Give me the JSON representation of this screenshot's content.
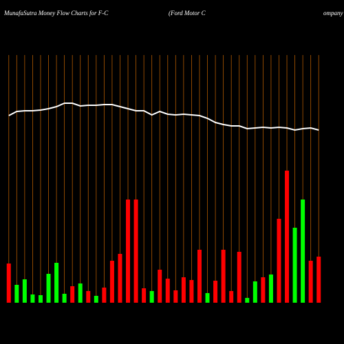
{
  "chart_data": {
    "type": "bar",
    "title": "MunafaSutra  Money Flow  Charts for F-C",
    "subtitle": "(Ford Motor C",
    "subtitle_tail": "ompany",
    "ylim": [
      0,
      440
    ],
    "categories": [
      null,
      null,
      null,
      null,
      null,
      null,
      null,
      null,
      null,
      null,
      null,
      null,
      null,
      null,
      null,
      null,
      null,
      null,
      null,
      null,
      null,
      null,
      null,
      null,
      null,
      null,
      null,
      null,
      null,
      null,
      null,
      null,
      null,
      null,
      null,
      null,
      null,
      null,
      null,
      null
    ],
    "values": [
      57,
      26,
      34,
      12,
      11,
      42,
      58,
      13,
      24,
      28,
      17,
      10,
      22,
      61,
      71,
      150,
      150,
      21,
      17,
      48,
      35,
      18,
      37,
      33,
      77,
      14,
      32,
      77,
      17,
      74,
      7,
      31,
      37,
      41,
      122,
      192,
      109,
      150,
      61,
      67
    ],
    "bar_colors": [
      "#ff0000",
      "#00ff00",
      "#00ff00",
      "#00ff00",
      "#00ff00",
      "#00ff00",
      "#00ff00",
      "#00ff00",
      "#ff0000",
      "#00ff00",
      "#ff0000",
      "#00ff00",
      "#ff0000",
      "#ff0000",
      "#ff0000",
      "#ff0000",
      "#ff0000",
      "#ff0000",
      "#00ff00",
      "#ff0000",
      "#ff0000",
      "#ff0000",
      "#ff0000",
      "#ff0000",
      "#ff0000",
      "#00ff00",
      "#ff0000",
      "#ff0000",
      "#ff0000",
      "#ff0000",
      "#00ff00",
      "#00ff00",
      "#ff0000",
      "#00ff00",
      "#ff0000",
      "#ff0000",
      "#00ff00",
      "#00ff00",
      "#ff0000",
      "#ff0000"
    ],
    "line": {
      "color": "#ffffff",
      "values": [
        272,
        278,
        279,
        279,
        280,
        282,
        285,
        290,
        290,
        286,
        287,
        287,
        288,
        288,
        285,
        282,
        279,
        279,
        273,
        278,
        274,
        273,
        274,
        273,
        272,
        268,
        262,
        259,
        257,
        257,
        253,
        254,
        255,
        254,
        255,
        254,
        251,
        253,
        254,
        251
      ]
    },
    "grid_color": "#b35a00",
    "grid": true
  }
}
